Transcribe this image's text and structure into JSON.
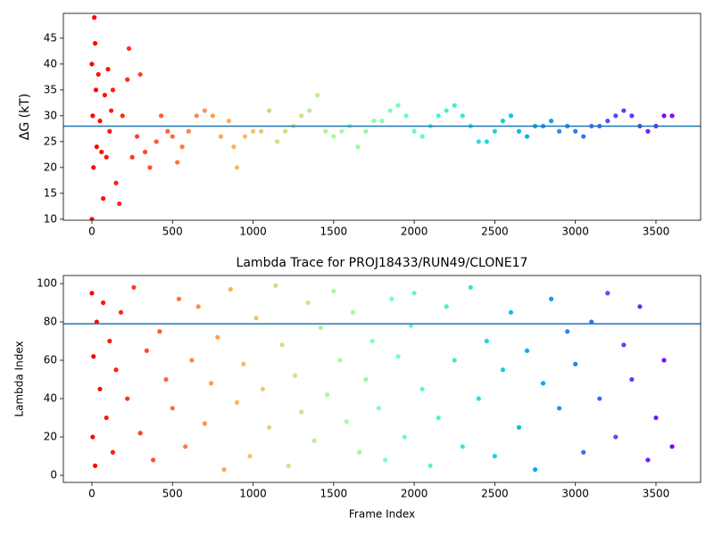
{
  "chart_data": [
    {
      "type": "scatter",
      "y_label": "ΔG (kT)",
      "colormap": "rainbow_r",
      "hline": 28,
      "hline_color": "#1f77b4",
      "xlim": [
        -177,
        3777
      ],
      "ylim": [
        9.8,
        49.8
      ],
      "xticks": [
        0,
        500,
        1000,
        1500,
        2000,
        2500,
        3000,
        3500
      ],
      "yticks": [
        10,
        15,
        20,
        25,
        30,
        35,
        40,
        45
      ],
      "x": [
        0,
        0,
        5,
        10,
        15,
        20,
        25,
        30,
        40,
        50,
        60,
        70,
        80,
        90,
        100,
        110,
        120,
        130,
        150,
        170,
        190,
        220,
        230,
        250,
        280,
        300,
        330,
        360,
        400,
        430,
        470,
        500,
        530,
        560,
        600,
        650,
        700,
        750,
        800,
        850,
        880,
        900,
        950,
        1000,
        1050,
        1100,
        1150,
        1200,
        1250,
        1300,
        1350,
        1400,
        1450,
        1500,
        1550,
        1600,
        1650,
        1700,
        1750,
        1800,
        1850,
        1900,
        1950,
        2000,
        2050,
        2100,
        2150,
        2200,
        2250,
        2300,
        2350,
        2400,
        2450,
        2500,
        2550,
        2600,
        2650,
        2700,
        2750,
        2800,
        2850,
        2900,
        2950,
        3000,
        3050,
        3100,
        3150,
        3200,
        3250,
        3300,
        3350,
        3400,
        3450,
        3500,
        3550,
        3600
      ],
      "values": [
        10,
        40,
        30,
        20,
        49,
        44,
        35,
        24,
        38,
        29,
        23,
        14,
        34,
        22,
        39,
        27,
        31,
        35,
        17,
        13,
        30,
        37,
        43,
        22,
        26,
        38,
        23,
        20,
        25,
        30,
        27,
        26,
        21,
        24,
        27,
        30,
        31,
        30,
        26,
        29,
        24,
        20,
        26,
        27,
        27,
        31,
        25,
        27,
        28,
        30,
        31,
        34,
        27,
        26,
        27,
        28,
        24,
        27,
        29,
        29,
        31,
        32,
        30,
        27,
        26,
        28,
        30,
        31,
        32,
        30,
        28,
        25,
        25,
        27,
        29,
        30,
        27,
        26,
        28,
        28,
        29,
        27,
        28,
        27,
        26,
        28,
        28,
        29,
        30,
        31,
        30,
        28,
        27,
        28,
        30,
        30
      ]
    },
    {
      "type": "scatter",
      "title": "Lambda Trace for PROJ18433/RUN49/CLONE17",
      "x_label": "Frame Index",
      "y_label": "Lambda Index",
      "colormap": "rainbow_r",
      "hline": 79,
      "hline_color": "#1f77b4",
      "xlim": [
        -177,
        3777
      ],
      "ylim": [
        -3.7,
        104.2
      ],
      "xticks": [
        0,
        500,
        1000,
        1500,
        2000,
        2500,
        3000,
        3500
      ],
      "yticks": [
        0,
        20,
        40,
        60,
        80,
        100
      ],
      "x": [
        0,
        5,
        10,
        20,
        30,
        50,
        70,
        90,
        110,
        130,
        150,
        180,
        220,
        260,
        300,
        340,
        380,
        420,
        460,
        500,
        540,
        580,
        620,
        660,
        700,
        740,
        780,
        820,
        860,
        900,
        940,
        980,
        1020,
        1060,
        1100,
        1140,
        1180,
        1220,
        1260,
        1300,
        1340,
        1380,
        1420,
        1460,
        1500,
        1540,
        1580,
        1620,
        1660,
        1700,
        1740,
        1780,
        1820,
        1860,
        1900,
        1940,
        1980,
        2000,
        2050,
        2100,
        2150,
        2200,
        2250,
        2300,
        2350,
        2400,
        2450,
        2500,
        2550,
        2600,
        2650,
        2700,
        2750,
        2800,
        2850,
        2900,
        2950,
        3000,
        3050,
        3100,
        3150,
        3200,
        3250,
        3300,
        3350,
        3400,
        3450,
        3500,
        3550,
        3600
      ],
      "values": [
        95,
        20,
        62,
        5,
        80,
        45,
        90,
        30,
        70,
        12,
        55,
        85,
        40,
        98,
        22,
        65,
        8,
        75,
        50,
        35,
        92,
        15,
        60,
        88,
        27,
        48,
        72,
        3,
        97,
        38,
        58,
        10,
        82,
        45,
        25,
        99,
        68,
        5,
        52,
        33,
        90,
        18,
        77,
        42,
        96,
        60,
        28,
        85,
        12,
        50,
        70,
        35,
        8,
        92,
        62,
        20,
        78,
        95,
        45,
        5,
        30,
        88,
        60,
        15,
        98,
        40,
        70,
        10,
        55,
        85,
        25,
        65,
        3,
        48,
        92,
        35,
        75,
        58,
        12,
        80,
        40,
        95,
        20,
        68,
        50,
        88,
        8,
        30,
        60,
        15
      ]
    }
  ]
}
